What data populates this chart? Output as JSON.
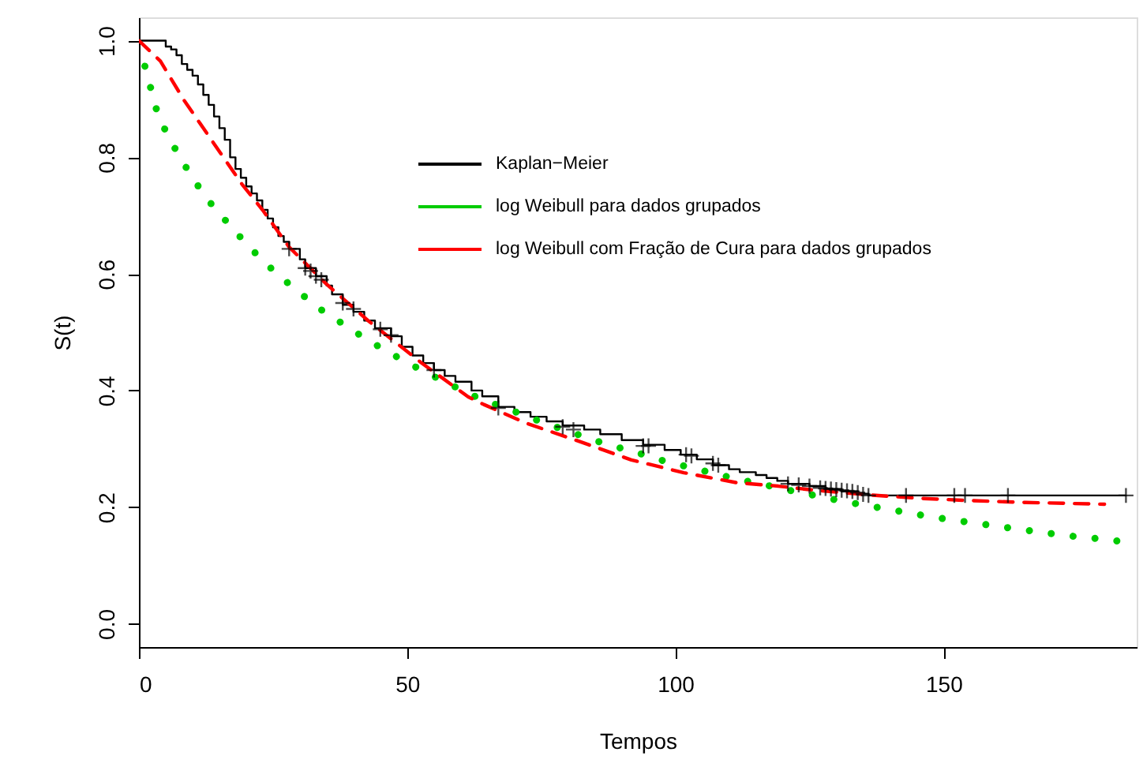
{
  "chart_data": {
    "type": "line",
    "xlabel": "Tempos",
    "ylabel": "S(t)",
    "xlim": [
      0,
      186
    ],
    "ylim": [
      -0.04,
      1.04
    ],
    "xticks": [
      0,
      50,
      100,
      150
    ],
    "yticks": [
      {
        "value": 0,
        "label": "0.0"
      },
      0.2,
      0.4,
      0.6,
      0.8,
      {
        "value": 1,
        "label": "1.0"
      }
    ],
    "grid": false,
    "legend": "top",
    "series": [
      {
        "name": "Kaplan−Meier",
        "type": "step",
        "color": "#000000",
        "line_style": "solid",
        "x": [
          0,
          5,
          6,
          7,
          8,
          9,
          10,
          11,
          12,
          13,
          14,
          15,
          16,
          17,
          18,
          19,
          20,
          21,
          22,
          23,
          24,
          25,
          26,
          27,
          28,
          30,
          31,
          33,
          35,
          36,
          38,
          40,
          42,
          44,
          47,
          49,
          51,
          53,
          55,
          57,
          59,
          62,
          64,
          67,
          70,
          73,
          76,
          79,
          83,
          86,
          90,
          94,
          98,
          101,
          104,
          107,
          110,
          112,
          115,
          117,
          119,
          121,
          125,
          128,
          131,
          134,
          136,
          184
        ],
        "values": [
          1.0,
          0.99,
          0.985,
          0.975,
          0.96,
          0.95,
          0.94,
          0.925,
          0.907,
          0.89,
          0.87,
          0.85,
          0.83,
          0.8,
          0.78,
          0.765,
          0.75,
          0.738,
          0.726,
          0.71,
          0.695,
          0.68,
          0.665,
          0.655,
          0.643,
          0.625,
          0.61,
          0.596,
          0.58,
          0.565,
          0.547,
          0.535,
          0.52,
          0.507,
          0.493,
          0.475,
          0.46,
          0.447,
          0.435,
          0.425,
          0.415,
          0.4,
          0.39,
          0.372,
          0.363,
          0.355,
          0.347,
          0.34,
          0.333,
          0.325,
          0.315,
          0.307,
          0.298,
          0.29,
          0.282,
          0.272,
          0.265,
          0.26,
          0.255,
          0.25,
          0.245,
          0.24,
          0.236,
          0.231,
          0.227,
          0.223,
          0.22,
          0.22
        ]
      },
      {
        "name": "log Weibull para dados grupados",
        "color": "#00cc00",
        "line_style": "dotted",
        "x": [
          1,
          3.5,
          5.5,
          7.9,
          10.4,
          13.1,
          16.3,
          19.4,
          22.6,
          26.1,
          29.8,
          33.4,
          37.4,
          41.4,
          45.5,
          49.6,
          53.7,
          57.9,
          62.1,
          66.8,
          71.2,
          75.6,
          80.2,
          84.7,
          89.1,
          93.7,
          98.3,
          102.8,
          107.5,
          112,
          116.8,
          121.2,
          126,
          130.7,
          135.4,
          140,
          144.7,
          149.4,
          154,
          158.7,
          163.3,
          168.2,
          173,
          177.6,
          182.3
        ],
        "values": [
          0.96,
          0.874,
          0.835,
          0.796,
          0.759,
          0.724,
          0.69,
          0.658,
          0.627,
          0.597,
          0.569,
          0.542,
          0.518,
          0.494,
          0.471,
          0.45,
          0.43,
          0.411,
          0.392,
          0.375,
          0.36,
          0.344,
          0.33,
          0.315,
          0.303,
          0.291,
          0.278,
          0.268,
          0.257,
          0.247,
          0.238,
          0.229,
          0.22,
          0.211,
          0.203,
          0.196,
          0.188,
          0.181,
          0.175,
          0.169,
          0.163,
          0.157,
          0.151,
          0.147,
          0.142
        ]
      },
      {
        "name": "log Weibull com Fração de Cura para dados grupados",
        "color": "#ff0000",
        "line_style": "dashed",
        "x": [
          0,
          4,
          8.4,
          13.8,
          19.2,
          23.1,
          28,
          34.9,
          42.7,
          52.6,
          61.4,
          64.3,
          72.2,
          82,
          91.8,
          101.6,
          111.4,
          119.2,
          126,
          136,
          145.7,
          155.5,
          165.3,
          180
        ],
        "values": [
          1.0,
          0.965,
          0.898,
          0.826,
          0.754,
          0.709,
          0.646,
          0.583,
          0.52,
          0.448,
          0.389,
          0.376,
          0.344,
          0.313,
          0.281,
          0.259,
          0.242,
          0.236,
          0.229,
          0.221,
          0.215,
          0.211,
          0.208,
          0.205
        ]
      },
      {
        "type": "scatter",
        "marker": "cross",
        "color": "#000000",
        "x": [
          28,
          31,
          32,
          33,
          34,
          38,
          40,
          45,
          47,
          55,
          67,
          79,
          81,
          94,
          95,
          102,
          103,
          107,
          108,
          121,
          123,
          125,
          127,
          128,
          129,
          130,
          131,
          132,
          133,
          134,
          135,
          136,
          143,
          152,
          154,
          162,
          184
        ],
        "values": [
          0.643,
          0.61,
          0.605,
          0.596,
          0.59,
          0.55,
          0.54,
          0.505,
          0.495,
          0.435,
          0.37,
          0.338,
          0.333,
          0.305,
          0.305,
          0.29,
          0.288,
          0.275,
          0.272,
          0.24,
          0.238,
          0.236,
          0.233,
          0.232,
          0.231,
          0.23,
          0.229,
          0.228,
          0.227,
          0.225,
          0.222,
          0.22,
          0.22,
          0.22,
          0.22,
          0.22,
          0.22
        ]
      }
    ]
  }
}
